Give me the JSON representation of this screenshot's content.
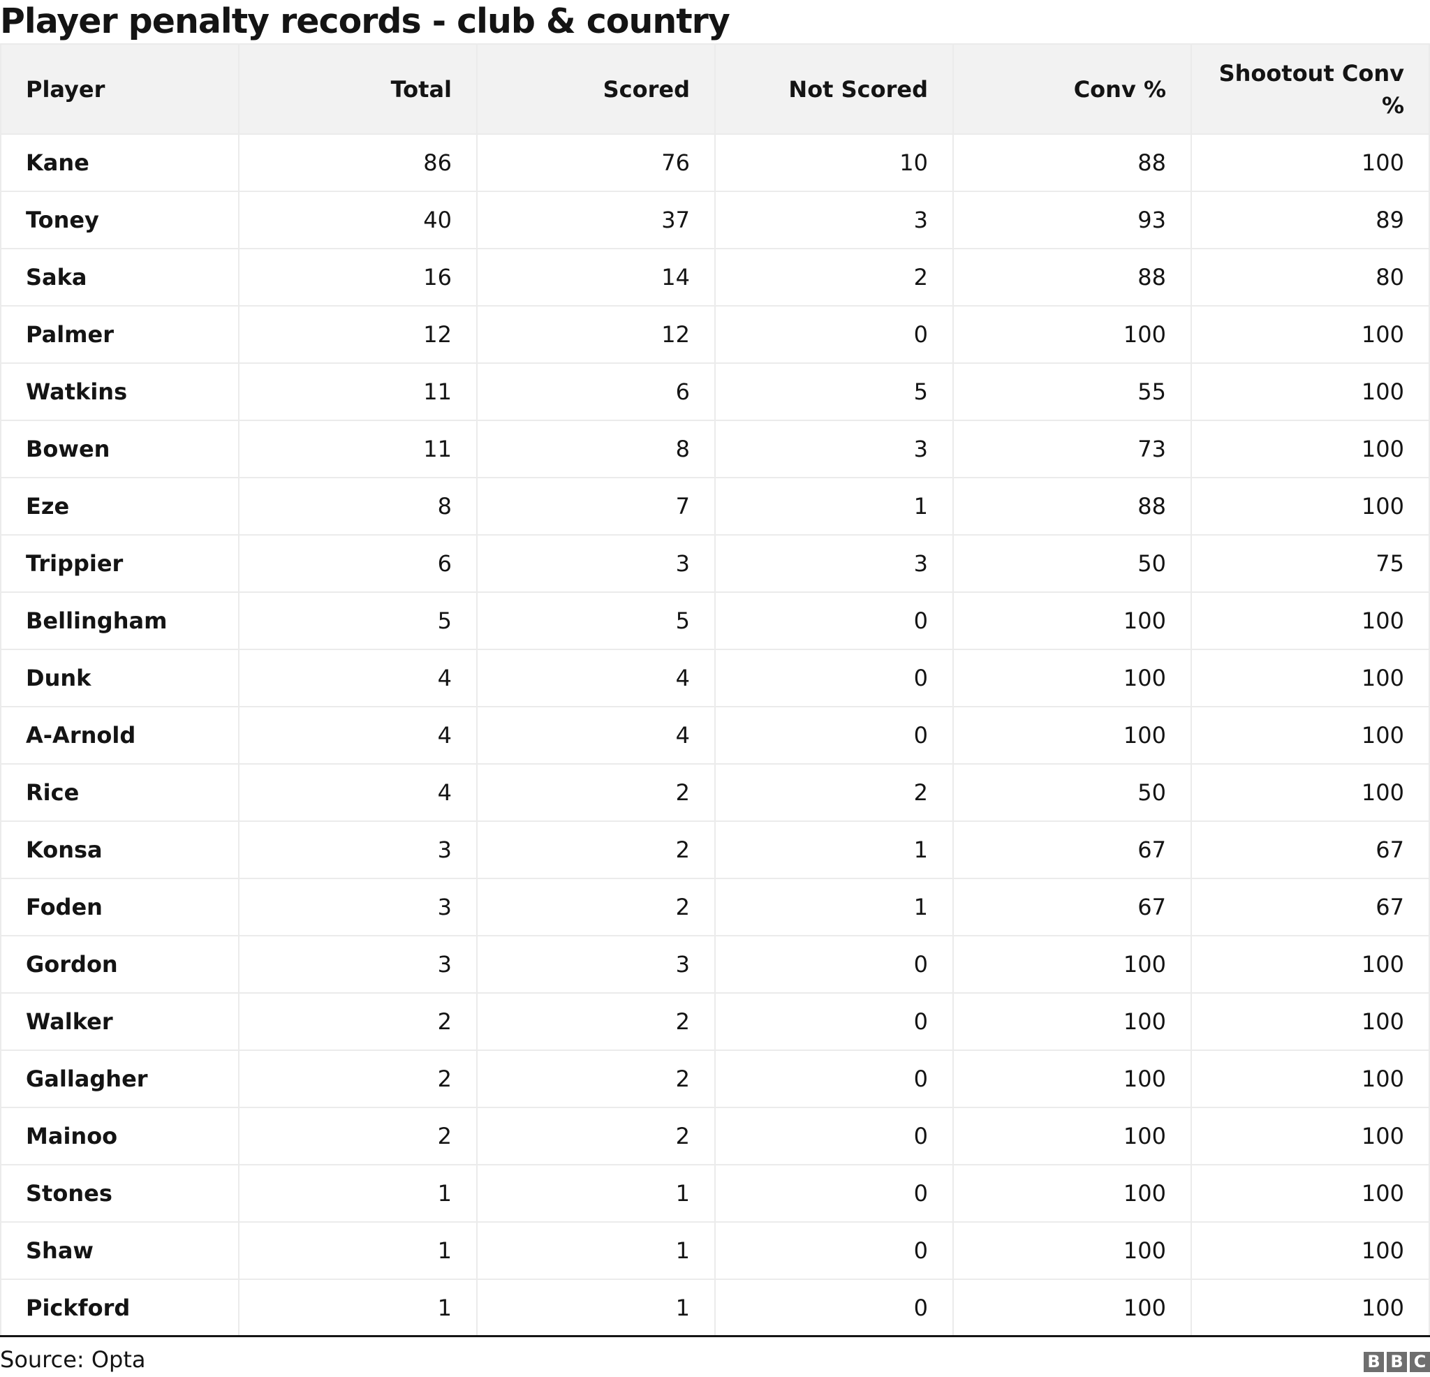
{
  "title": "Player penalty records - club & country",
  "table": {
    "headers": [
      "Player",
      "Total",
      "Scored",
      "Not Scored",
      "Conv %",
      "Shootout Conv %"
    ],
    "rows": [
      [
        "Kane",
        "86",
        "76",
        "10",
        "88",
        "100"
      ],
      [
        "Toney",
        "40",
        "37",
        "3",
        "93",
        "89"
      ],
      [
        "Saka",
        "16",
        "14",
        "2",
        "88",
        "80"
      ],
      [
        "Palmer",
        "12",
        "12",
        "0",
        "100",
        "100"
      ],
      [
        "Watkins",
        "11",
        "6",
        "5",
        "55",
        "100"
      ],
      [
        "Bowen",
        "11",
        "8",
        "3",
        "73",
        "100"
      ],
      [
        "Eze",
        "8",
        "7",
        "1",
        "88",
        "100"
      ],
      [
        "Trippier",
        "6",
        "3",
        "3",
        "50",
        "75"
      ],
      [
        "Bellingham",
        "5",
        "5",
        "0",
        "100",
        "100"
      ],
      [
        "Dunk",
        "4",
        "4",
        "0",
        "100",
        "100"
      ],
      [
        "A-Arnold",
        "4",
        "4",
        "0",
        "100",
        "100"
      ],
      [
        "Rice",
        "4",
        "2",
        "2",
        "50",
        "100"
      ],
      [
        "Konsa",
        "3",
        "2",
        "1",
        "67",
        "67"
      ],
      [
        "Foden",
        "3",
        "2",
        "1",
        "67",
        "67"
      ],
      [
        "Gordon",
        "3",
        "3",
        "0",
        "100",
        "100"
      ],
      [
        "Walker",
        "2",
        "2",
        "0",
        "100",
        "100"
      ],
      [
        "Gallagher",
        "2",
        "2",
        "0",
        "100",
        "100"
      ],
      [
        "Mainoo",
        "2",
        "2",
        "0",
        "100",
        "100"
      ],
      [
        "Stones",
        "1",
        "1",
        "0",
        "100",
        "100"
      ],
      [
        "Shaw",
        "1",
        "1",
        "0",
        "100",
        "100"
      ],
      [
        "Pickford",
        "1",
        "1",
        "0",
        "100",
        "100"
      ]
    ]
  },
  "footer": {
    "source": "Source: Opta",
    "logo": [
      "B",
      "B",
      "C"
    ]
  }
}
